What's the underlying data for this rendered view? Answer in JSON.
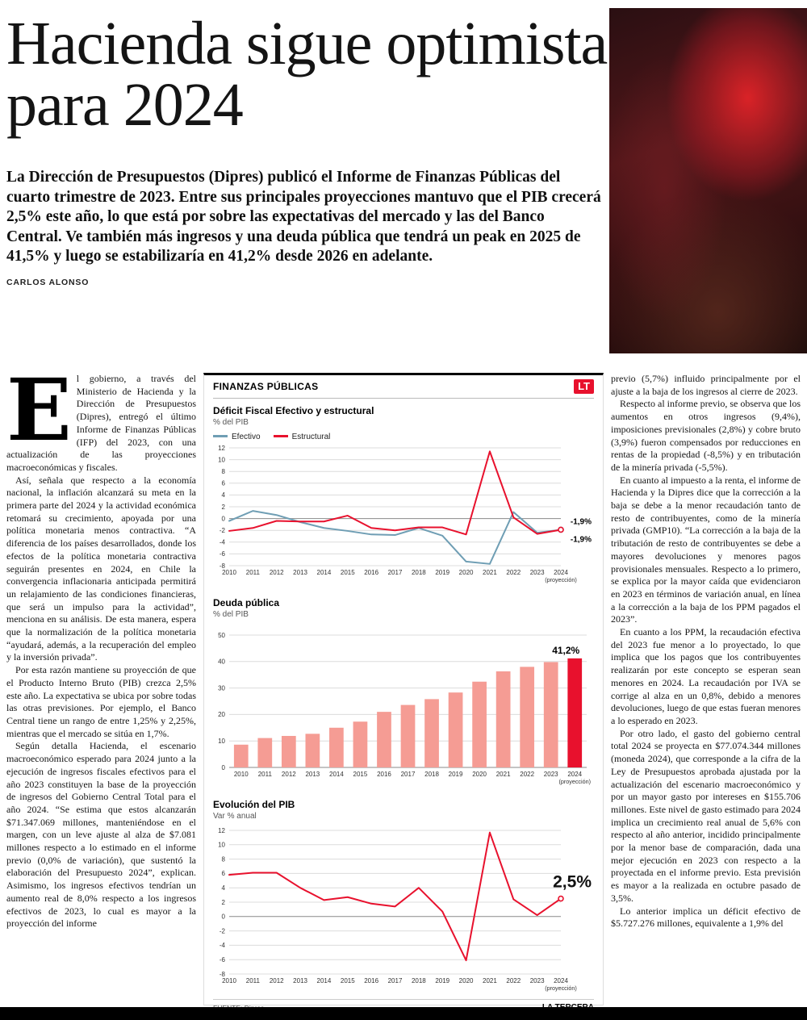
{
  "headline": "Hacienda sigue optimista para 2024",
  "lede": "La Dirección de Presupuestos (Dipres) publicó el Informe de Finanzas Públicas del cuarto trimestre de 2023. Entre sus principales proyecciones mantuvo que el PIB crecerá 2,5% este año, lo que está por sobre las expectativas del mercado y las del Banco Central. Ve también más ingresos y una deuda pública que tendrá un peak en 2025 de 41,5% y luego se estabilizaría en 41,2% desde 2026 en adelante.",
  "byline": "CARLOS ALONSO",
  "article": {
    "dropcap": "E",
    "left": [
      "l gobierno, a través del Ministerio de Hacienda y la Dirección de Presupuestos (Dipres), entregó el último Informe de Finanzas Públicas (IFP) del 2023, con una actualización de las proyecciones macroeconómicas y fiscales.",
      "Así, señala que respecto a la economía nacional, la inflación alcanzará su meta en la primera parte del 2024 y la actividad económica retomará su crecimiento, apoyada por una política monetaria menos contractiva. “A diferencia de los países desarrollados, donde los efectos de la política monetaria contractiva seguirán presentes en 2024, en Chile la convergencia inflacionaria anticipada permitirá un relajamiento de las condiciones financieras, que será un impulso para la actividad”, menciona en su análisis. De esta manera, espera que la normalización de la política monetaria “ayudará, además, a la recuperación del empleo y la inversión privada”.",
      "Por esta razón mantiene su proyección de que el Producto Interno Bruto (PIB) crezca 2,5% este año. La expectativa se ubica por sobre todas las otras previsiones. Por ejemplo, el Banco Central tiene un rango de entre 1,25% y 2,25%, mientras que el mercado se sitúa en 1,7%.",
      "Según detalla Hacienda, el escenario macroeconómico esperado para 2024 junto a la ejecución de ingresos fiscales efectivos para el año 2023 constituyen la base de la proyección de ingresos del Gobierno Central Total para el año 2024. “Se estima que estos alcanzarán $71.347.069 millones, manteniéndose en el margen, con un leve ajuste al alza de $7.081 millones respecto a lo estimado en el informe previo (0,0% de variación), que sustentó la elaboración del Presupuesto 2024”, explican. Asimismo, los ingresos efectivos tendrían un aumento real de 8,0% respecto a los ingresos efectivos de 2023, lo cual es mayor a la proyección del informe"
    ],
    "right": [
      "previo (5,7%) influido principalmente por el ajuste a la baja de los ingresos al cierre de 2023.",
      "Respecto al informe previo, se observa que los aumentos en otros ingresos (9,4%), imposiciones previsionales (2,8%) y cobre bruto (3,9%) fueron compensados por reducciones en rentas de la propiedad (-8,5%) y en tributación de la minería privada (-5,5%).",
      "En cuanto al impuesto a la renta, el informe de Hacienda y la Dipres dice que la corrección a la baja se debe a la menor recaudación tanto de resto de contribuyentes, como de la minería privada (GMP10). “La corrección a la baja de la tributación de resto de contribuyentes se debe a mayores devoluciones y menores pagos provisionales mensuales. Respecto a lo primero, se explica por la mayor caída que evidenciaron en 2023 en términos de variación anual, en línea a la corrección a la baja de los PPM pagados el 2023”.",
      "En cuanto a los PPM, la recaudación efectiva del 2023 fue menor a lo proyectado, lo que implica que los pagos que los contribuyentes realizarán por este concepto se esperan sean menores en 2024. La recaudación por IVA se corrige al alza en un 0,8%, debido a menores devoluciones, luego de que estas fueran menores a lo esperado en 2023.",
      "Por otro lado, el gasto del gobierno central total 2024 se proyecta en $77.074.344 millones (moneda 2024), que corresponde a la cifra de la Ley de Presupuestos aprobada ajustada por la actualización del escenario macroeconómico y por un mayor gasto por intereses en $155.706 millones. Este nivel de gasto estimado para 2024 implica un crecimiento real anual de 5,6% con respecto al año anterior, incidido principalmente por la menor base de comparación, dada una mejor ejecución en 2023 con respecto a la proyectada en el informe previo. Esta previsión es mayor a la realizada en octubre pasado de 3,5%.",
      "Lo anterior implica un déficit efectivo de $5.727.276 millones, equivalente a 1,9% del"
    ]
  },
  "infographic": {
    "kicker": "FINANZAS PÚBLICAS",
    "logo": "LT",
    "source_label": "FUENTE:",
    "source": "Dipres",
    "credit": "LA TERCERA"
  },
  "colors": {
    "accent_red": "#e8112d",
    "line_blue": "#6f9eb4",
    "bar_salmon": "#f59c94"
  },
  "chart_data": [
    {
      "type": "line",
      "title": "Déficit Fiscal Efectivo y estructural",
      "ylabel": "% del PIB",
      "categories": [
        "2010",
        "2011",
        "2012",
        "2013",
        "2014",
        "2015",
        "2016",
        "2017",
        "2018",
        "2019",
        "2020",
        "2021",
        "2022",
        "2023",
        "2024"
      ],
      "series": [
        {
          "name": "Efectivo",
          "color": "#6f9eb4",
          "values": [
            -0.4,
            1.3,
            0.6,
            -0.6,
            -1.6,
            -2.1,
            -2.7,
            -2.8,
            -1.6,
            -2.9,
            -7.3,
            -7.7,
            1.1,
            -2.4,
            -1.9
          ]
        },
        {
          "name": "Estructural",
          "color": "#e8112d",
          "values": [
            -2.1,
            -1.6,
            -0.4,
            -0.5,
            -0.5,
            0.5,
            -1.6,
            -2.0,
            -1.5,
            -1.5,
            -2.7,
            11.4,
            0.2,
            -2.6,
            -1.9
          ]
        }
      ],
      "ylim": [
        -8,
        12
      ],
      "ytick_step": 2,
      "end_labels": [
        "-1,9%",
        "-1,9%"
      ],
      "x_note": "(proyección)",
      "legend_position": "top",
      "grid": true
    },
    {
      "type": "bar",
      "title": "Deuda pública",
      "ylabel": "% del PIB",
      "categories": [
        "2010",
        "2011",
        "2012",
        "2013",
        "2014",
        "2015",
        "2016",
        "2017",
        "2018",
        "2019",
        "2020",
        "2021",
        "2022",
        "2023",
        "2024"
      ],
      "values": [
        8.6,
        11.1,
        11.9,
        12.7,
        15.0,
        17.3,
        21.0,
        23.6,
        25.8,
        28.3,
        32.4,
        36.3,
        38.0,
        39.8,
        41.2
      ],
      "ylim": [
        0,
        50
      ],
      "ytick_step": 10,
      "bar_color": "#f59c94",
      "highlight_last": true,
      "highlight_color": "#e8112d",
      "end_label": "41,2%",
      "x_note": "(proyección)",
      "grid": true
    },
    {
      "type": "line",
      "title": "Evolución del PIB",
      "ylabel": "Var % anual",
      "categories": [
        "2010",
        "2011",
        "2012",
        "2013",
        "2014",
        "2015",
        "2016",
        "2017",
        "2018",
        "2019",
        "2020",
        "2021",
        "2022",
        "2023",
        "2024"
      ],
      "series": [
        {
          "name": "PIB",
          "color": "#e8112d",
          "values": [
            5.8,
            6.1,
            6.1,
            4.0,
            2.3,
            2.7,
            1.8,
            1.4,
            4.0,
            0.7,
            -6.1,
            11.7,
            2.4,
            0.2,
            2.5
          ]
        }
      ],
      "ylim": [
        -8,
        12
      ],
      "ytick_step": 2,
      "end_label": "2,5%",
      "x_note": "(proyección)",
      "grid": true
    }
  ]
}
